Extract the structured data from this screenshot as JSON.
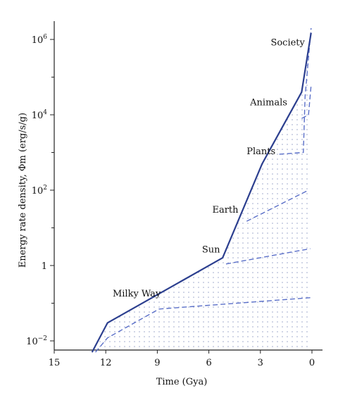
{
  "chart_data": {
    "type": "line",
    "xlabel": "Time (Gya)",
    "ylabel": "Energy rate density, Φm (erg/s/g)",
    "x_ticks": [
      15,
      12,
      9,
      6,
      3,
      0
    ],
    "x_tick_labels": [
      "15",
      "12",
      "9",
      "6",
      "3",
      "0"
    ],
    "x_range": [
      15,
      0
    ],
    "y_scale": "log",
    "y_range": [
      0.005,
      3000000
    ],
    "y_major_ticks": [
      0.01,
      1,
      100,
      10000,
      1000000
    ],
    "y_tick_labels": [
      "10^-2",
      "1",
      "10^2",
      "10^4",
      "10^6"
    ],
    "y_minor_ticks": [
      0.1,
      10,
      1000,
      100000
    ],
    "main_series": {
      "x": [
        12.8,
        11.9,
        5.2,
        2.9,
        0.6,
        0.05
      ],
      "y": [
        0.005,
        0.03,
        1.6,
        500,
        40000,
        1500000
      ]
    },
    "dashed_series": [
      {
        "x": [
          12.6,
          11.9,
          8.9,
          0.1
        ],
        "y": [
          0.005,
          0.012,
          0.07,
          0.14
        ]
      },
      {
        "x": [
          5.0,
          0.1
        ],
        "y": [
          1.1,
          2.8
        ]
      },
      {
        "x": [
          3.8,
          0.2
        ],
        "y": [
          15,
          100
        ]
      },
      {
        "x": [
          1.9,
          0.5,
          0.4,
          0.05
        ],
        "y": [
          900,
          1000,
          30000,
          2000000
        ]
      },
      {
        "x": [
          0.6,
          0.2,
          0.05
        ],
        "y": [
          8000,
          10000,
          60000
        ]
      }
    ],
    "annotations": [
      {
        "text": "Milky Way",
        "x": 11.6,
        "y": 0.15
      },
      {
        "text": "Sun",
        "x": 6.4,
        "y": 2.2
      },
      {
        "text": "Earth",
        "x": 5.8,
        "y": 25
      },
      {
        "text": "Plants",
        "x": 3.8,
        "y": 900
      },
      {
        "text": "Animals",
        "x": 3.6,
        "y": 18000
      },
      {
        "text": "Society",
        "x": 2.4,
        "y": 700000
      }
    ]
  }
}
